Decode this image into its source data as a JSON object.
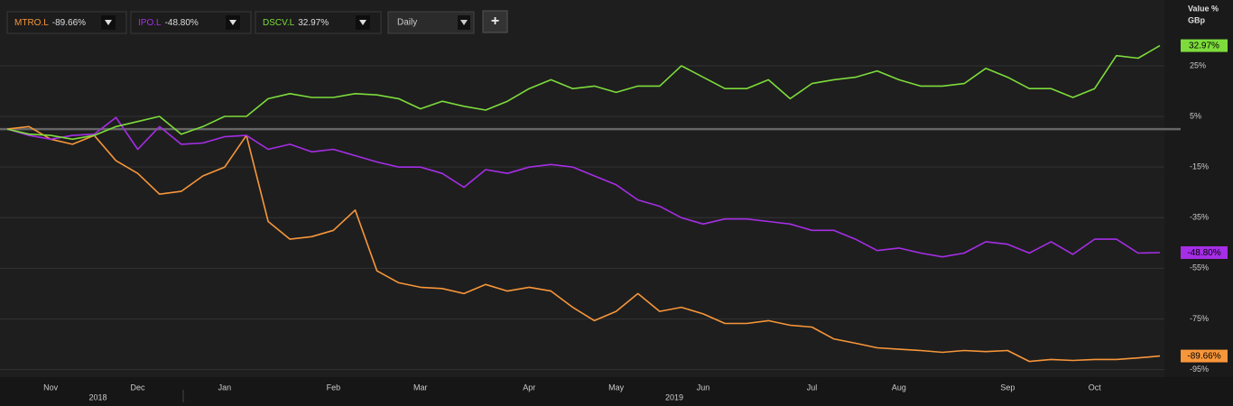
{
  "chart_data": {
    "type": "line",
    "interval": "Daily",
    "add_button": "+",
    "y_axis_title": "Value %",
    "y_axis_unit": "GBp",
    "x_groups": [
      "2018",
      "2019"
    ],
    "categories": [
      null,
      null,
      "Nov",
      null,
      null,
      null,
      "Dec",
      null,
      null,
      null,
      "Jan",
      null,
      null,
      null,
      null,
      "Feb",
      null,
      null,
      null,
      "Mar",
      null,
      null,
      null,
      null,
      "Apr",
      null,
      null,
      null,
      "May",
      null,
      null,
      null,
      "Jun",
      null,
      null,
      null,
      null,
      "Jul",
      null,
      null,
      null,
      "Aug",
      null,
      null,
      null,
      null,
      "Sep",
      null,
      null,
      null,
      "Oct",
      null,
      null,
      null
    ],
    "series": [
      {
        "name": "MTRO.L",
        "change": "-89.66%",
        "color": "#f7963a",
        "values": [
          0,
          1,
          -4,
          -6,
          -2.5,
          -12.5,
          -17.5,
          -25.7,
          -24.6,
          -18.5,
          -15,
          -2.5,
          -36.5,
          -43.5,
          -42.5,
          -40,
          -32,
          -56,
          -60.7,
          -62.5,
          -63,
          -65,
          -61.4,
          -64,
          -62.5,
          -64,
          -70.4,
          -75.7,
          -72,
          -65,
          -72,
          -70.4,
          -73,
          -76.8,
          -76.8,
          -75.7,
          -77.5,
          -78.2,
          -82.9,
          -84.6,
          -86.4,
          -87,
          -87.5,
          -88.2,
          -87.5,
          -87.9,
          -87.5,
          -91.8,
          -91,
          -91.4,
          -91,
          -91,
          -90.4,
          -89.66
        ]
      },
      {
        "name": "IPO.L",
        "change": "-48.80%",
        "color": "#a52ee6",
        "values": [
          0,
          -2.5,
          -4,
          -2.5,
          -2,
          4.6,
          -8,
          1,
          -6,
          -5.5,
          -3,
          -2.5,
          -8,
          -6,
          -9,
          -8,
          -10.5,
          -13,
          -15,
          -15,
          -17.5,
          -23,
          -16,
          -17.5,
          -15,
          -14,
          -15,
          -18.5,
          -22,
          -28,
          -30.5,
          -35,
          -37.5,
          -35.5,
          -35.5,
          -36.5,
          -37.5,
          -40,
          -40,
          -43.5,
          -48,
          -47,
          -49,
          -50.5,
          -49,
          -44.5,
          -45.5,
          -49,
          -44.5,
          -49.5,
          -43.5,
          -43.5,
          -49,
          -48.8
        ]
      },
      {
        "name": "DSCV.L",
        "change": "32.97%",
        "color": "#7ddc3c",
        "values": [
          0,
          -2,
          -2.5,
          -4,
          -2.5,
          1,
          3,
          5,
          -2,
          1,
          5,
          5,
          12,
          14,
          12.5,
          12.5,
          14,
          13.5,
          12,
          8,
          11,
          9,
          7.5,
          11,
          16,
          19.5,
          16,
          17,
          14.5,
          17,
          17,
          25,
          20.5,
          16,
          16,
          19.5,
          12,
          18,
          19.5,
          20.5,
          23,
          19.5,
          17,
          17,
          18,
          24,
          20.5,
          16,
          16,
          12.5,
          16,
          29,
          28,
          32.97
        ]
      }
    ],
    "ylim": [
      -98,
      51
    ],
    "yticks": [
      {
        "value": 25,
        "label": "25%"
      },
      {
        "value": 5,
        "label": "5%"
      },
      {
        "value": -15,
        "label": "-15%"
      },
      {
        "value": -35,
        "label": "-35%"
      },
      {
        "value": -55,
        "label": "-55%"
      },
      {
        "value": -75,
        "label": "-75%"
      },
      {
        "value": -95,
        "label": "-95%"
      }
    ],
    "baseline": 0,
    "grid": true
  }
}
